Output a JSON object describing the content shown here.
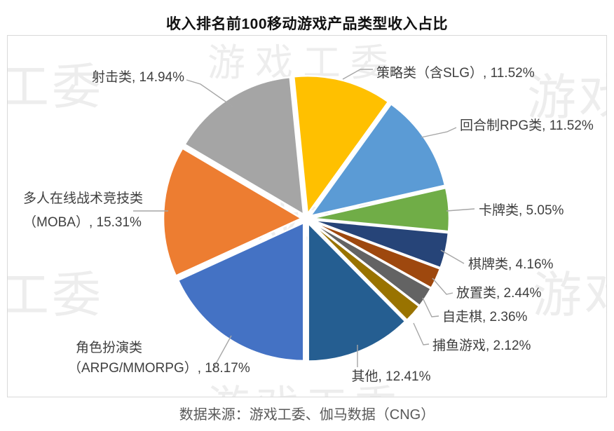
{
  "title": "收入排名前100移动游戏产品类型收入占比",
  "source": "数据来源：游戏工委、伽马数据（CNG）",
  "watermark": {
    "full": "游戏工委",
    "left": "工委",
    "right": "游戏"
  },
  "chart_data": {
    "type": "pie",
    "title": "收入排名前100移动游戏产品类型收入占比",
    "unit": "percent",
    "direction": "clockwise",
    "start_angle_deg": -5.7,
    "legend_position": "none",
    "labels_style": "outside-with-leader-lines",
    "slices": [
      {
        "label": "策略类（含SLG）",
        "value": 11.52,
        "display": "策略类（含SLG）, 11.52%",
        "color": "#FFC000"
      },
      {
        "label": "回合制RPG类",
        "value": 11.52,
        "display": "回合制RPG类, 11.52%",
        "color": "#5B9BD5"
      },
      {
        "label": "卡牌类",
        "value": 5.05,
        "display": "卡牌类, 5.05%",
        "color": "#70AD47"
      },
      {
        "label": "棋牌类",
        "value": 4.16,
        "display": "棋牌类, 4.16%",
        "color": "#264478"
      },
      {
        "label": "放置类",
        "value": 2.44,
        "display": "放置类, 2.44%",
        "color": "#9E480E"
      },
      {
        "label": "自走棋",
        "value": 2.36,
        "display": "自走棋, 2.36%",
        "color": "#636363"
      },
      {
        "label": "捕鱼游戏",
        "value": 2.12,
        "display": "捕鱼游戏, 2.12%",
        "color": "#997300"
      },
      {
        "label": "其他",
        "value": 12.41,
        "display": "其他, 12.41%",
        "color": "#255E91"
      },
      {
        "label": "角色扮演类（ARPG/MMORPG）",
        "value": 18.17,
        "display_lines": [
          "角色扮演类",
          "（ARPG/MMORPG）, 18.17%"
        ],
        "color": "#4472C4"
      },
      {
        "label": "多人在线战术竞技类（MOBA）",
        "value": 15.31,
        "display_lines": [
          "多人在线战术竞技类",
          "（MOBA）, 15.31%"
        ],
        "color": "#ED7D31"
      },
      {
        "label": "射击类",
        "value": 14.94,
        "display": "射击类, 14.94%",
        "color": "#A5A5A5"
      }
    ]
  }
}
